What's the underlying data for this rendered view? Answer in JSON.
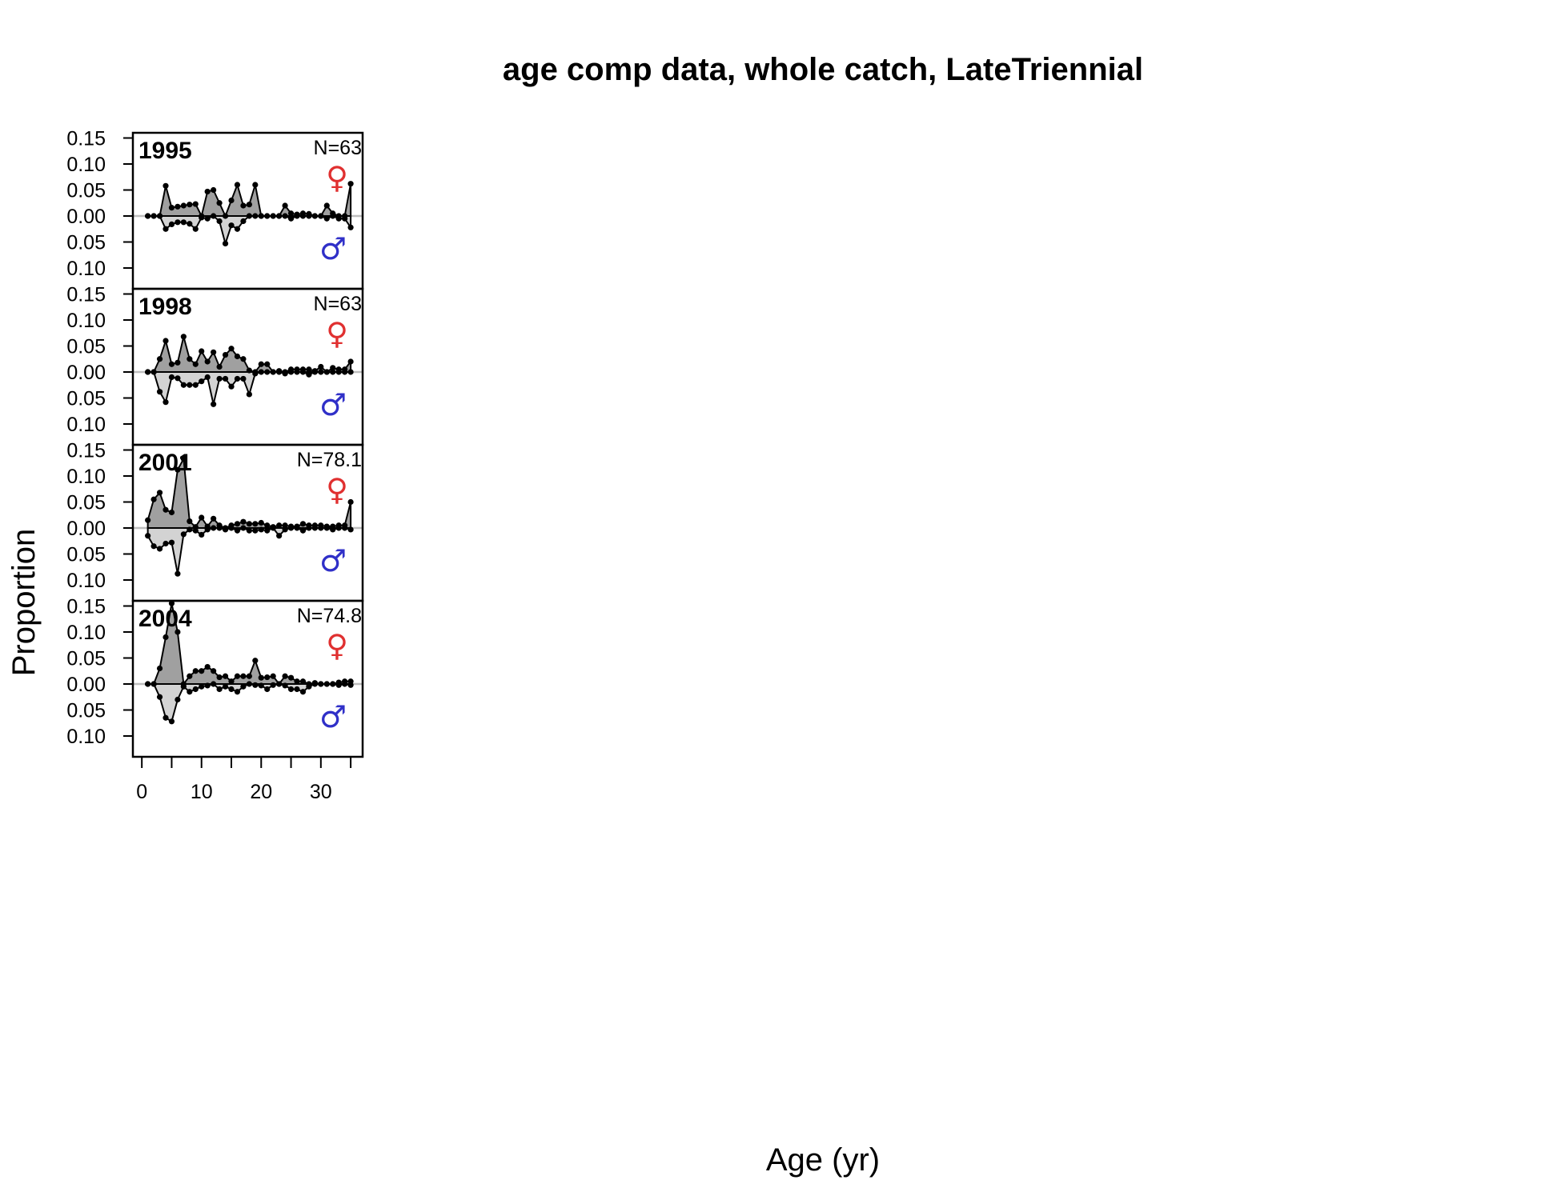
{
  "chart_data": {
    "type": "area",
    "title": "age comp data, whole catch, LateTriennial",
    "xlabel": "Age (yr)",
    "ylabel": "Proportion",
    "xlim": [
      -1.5,
      37
    ],
    "ylim": [
      -0.14,
      0.16
    ],
    "x_ticks": [
      0,
      10,
      20,
      30
    ],
    "x_tick_labels": [
      "0",
      "10",
      "20",
      "30"
    ],
    "y_ticks": [
      0.15,
      0.1,
      0.05,
      0.0,
      -0.05,
      -0.1
    ],
    "y_tick_labels": [
      "0.15",
      "0.10",
      "0.05",
      "0.00",
      "0.05",
      "0.10"
    ],
    "female_symbol": "♀",
    "male_symbol": "♂",
    "colors": {
      "female_fill": "#a0a0a0",
      "male_fill": "#d3d3d3",
      "female_symbol": "#e03030",
      "male_symbol": "#3030c8",
      "zero_line": "#bebebe",
      "points": "#000000"
    },
    "ages": [
      1,
      2,
      3,
      4,
      5,
      6,
      7,
      8,
      9,
      10,
      11,
      12,
      13,
      14,
      15,
      16,
      17,
      18,
      19,
      20,
      21,
      22,
      23,
      24,
      25,
      26,
      27,
      28,
      29,
      30,
      31,
      32,
      33,
      34,
      35
    ],
    "panels": [
      {
        "year": "1995",
        "n_label": "N=63",
        "female": [
          0,
          0,
          0,
          0.058,
          0.016,
          0.018,
          0.02,
          0.022,
          0.023,
          0,
          0.047,
          0.05,
          0.025,
          0,
          0.03,
          0.06,
          0.02,
          0.022,
          0.06,
          0,
          0,
          0,
          0,
          0.02,
          0.005,
          0.003,
          0.005,
          0.004,
          0,
          0,
          0.02,
          0.005,
          0,
          0,
          0.062
        ],
        "male": [
          0,
          0,
          0,
          -0.025,
          -0.016,
          -0.012,
          -0.012,
          -0.015,
          -0.025,
          -0.003,
          -0.005,
          0,
          -0.01,
          -0.053,
          -0.018,
          -0.025,
          -0.01,
          0,
          0,
          0,
          0,
          0,
          0,
          0,
          -0.005,
          0,
          0,
          0,
          0,
          0,
          -0.005,
          0,
          -0.005,
          -0.005,
          -0.022
        ]
      },
      {
        "year": "1998",
        "n_label": "N=63",
        "female": [
          0,
          0,
          0.025,
          0.06,
          0.015,
          0.018,
          0.068,
          0.025,
          0.015,
          0.04,
          0.02,
          0.038,
          0.01,
          0.033,
          0.045,
          0.03,
          0.025,
          0.003,
          0,
          0.015,
          0.015,
          0,
          0.002,
          0,
          0.005,
          0.005,
          0.005,
          0.005,
          0.002,
          0.01,
          0,
          0.008,
          0.005,
          0.005,
          0.02
        ],
        "male": [
          0,
          0,
          -0.038,
          -0.058,
          -0.01,
          -0.012,
          -0.025,
          -0.025,
          -0.025,
          -0.018,
          -0.01,
          -0.062,
          -0.013,
          -0.013,
          -0.028,
          -0.013,
          -0.013,
          -0.043,
          -0.003,
          0,
          0,
          0,
          0,
          -0.003,
          0,
          0,
          0,
          -0.005,
          0,
          0,
          0,
          0,
          0,
          0,
          0
        ]
      },
      {
        "year": "2001",
        "n_label": "N=78.1",
        "female": [
          0.015,
          0.055,
          0.068,
          0.035,
          0.03,
          0.112,
          0.133,
          0.013,
          0.002,
          0.02,
          0.003,
          0.018,
          0.005,
          0,
          0.005,
          0.008,
          0.012,
          0.008,
          0.008,
          0.01,
          0.005,
          0.002,
          0.005,
          0.005,
          0.003,
          0.003,
          0.008,
          0.005,
          0.005,
          0.005,
          0.003,
          0.003,
          0.005,
          0.005,
          0.05
        ],
        "male": [
          -0.015,
          -0.035,
          -0.04,
          -0.03,
          -0.028,
          -0.088,
          -0.012,
          -0.003,
          -0.005,
          -0.013,
          -0.003,
          0,
          0,
          -0.003,
          0,
          -0.005,
          0,
          -0.005,
          -0.005,
          -0.003,
          -0.005,
          0,
          -0.015,
          -0.003,
          0,
          0,
          -0.005,
          0,
          0,
          0,
          0,
          -0.003,
          0,
          0,
          -0.003
        ]
      },
      {
        "year": "2004",
        "n_label": "N=74.8",
        "female": [
          0,
          0,
          0.03,
          0.09,
          0.155,
          0.1,
          0,
          0.015,
          0.025,
          0.025,
          0.033,
          0.025,
          0.013,
          0.015,
          0.005,
          0.015,
          0.015,
          0.015,
          0.045,
          0.012,
          0.013,
          0.015,
          0,
          0.015,
          0.012,
          0.005,
          0.005,
          0,
          0.002,
          0,
          0,
          0,
          0.003,
          0.005,
          0.005
        ],
        "male": [
          0,
          0,
          -0.025,
          -0.065,
          -0.072,
          -0.03,
          -0.005,
          -0.015,
          -0.01,
          -0.005,
          -0.003,
          0,
          -0.01,
          -0.005,
          -0.01,
          -0.015,
          -0.005,
          0,
          -0.002,
          -0.003,
          -0.01,
          -0.002,
          0,
          -0.003,
          -0.01,
          -0.01,
          -0.015,
          -0.005,
          0,
          0,
          0,
          0,
          -0.002,
          0,
          -0.002
        ]
      }
    ]
  }
}
